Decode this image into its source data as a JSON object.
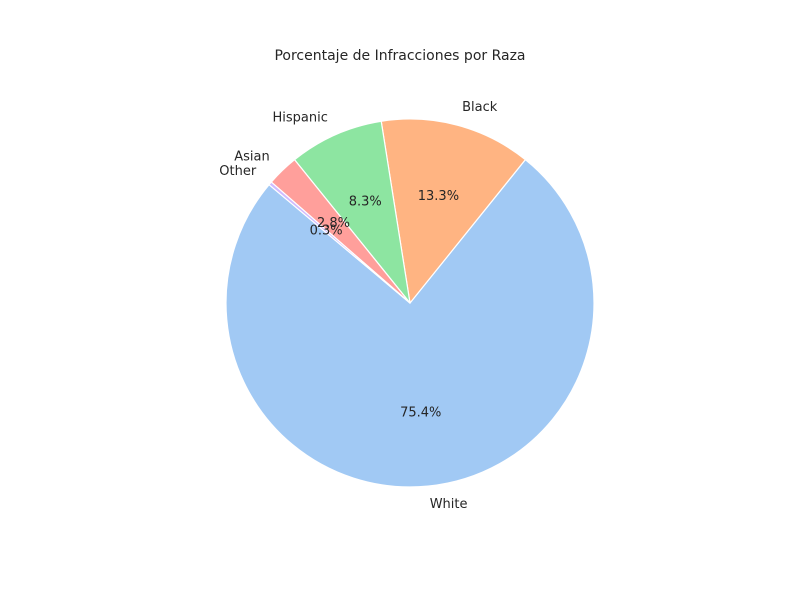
{
  "chart_data": {
    "type": "pie",
    "title": "Porcentaje de Infracciones por Raza",
    "labels": [
      "White",
      "Black",
      "Hispanic",
      "Asian",
      "Other"
    ],
    "values": [
      75.4,
      13.3,
      8.3,
      2.8,
      0.3
    ],
    "value_labels": [
      "75.4%",
      "13.3%",
      "8.3%",
      "2.8%",
      "0.3%"
    ],
    "colors": [
      "#a1c9f4",
      "#ffb482",
      "#8de5a1",
      "#ff9f9b",
      "#d0bbff"
    ],
    "start_angle_deg": 140,
    "direction": "counterclockwise",
    "legend": "none"
  }
}
